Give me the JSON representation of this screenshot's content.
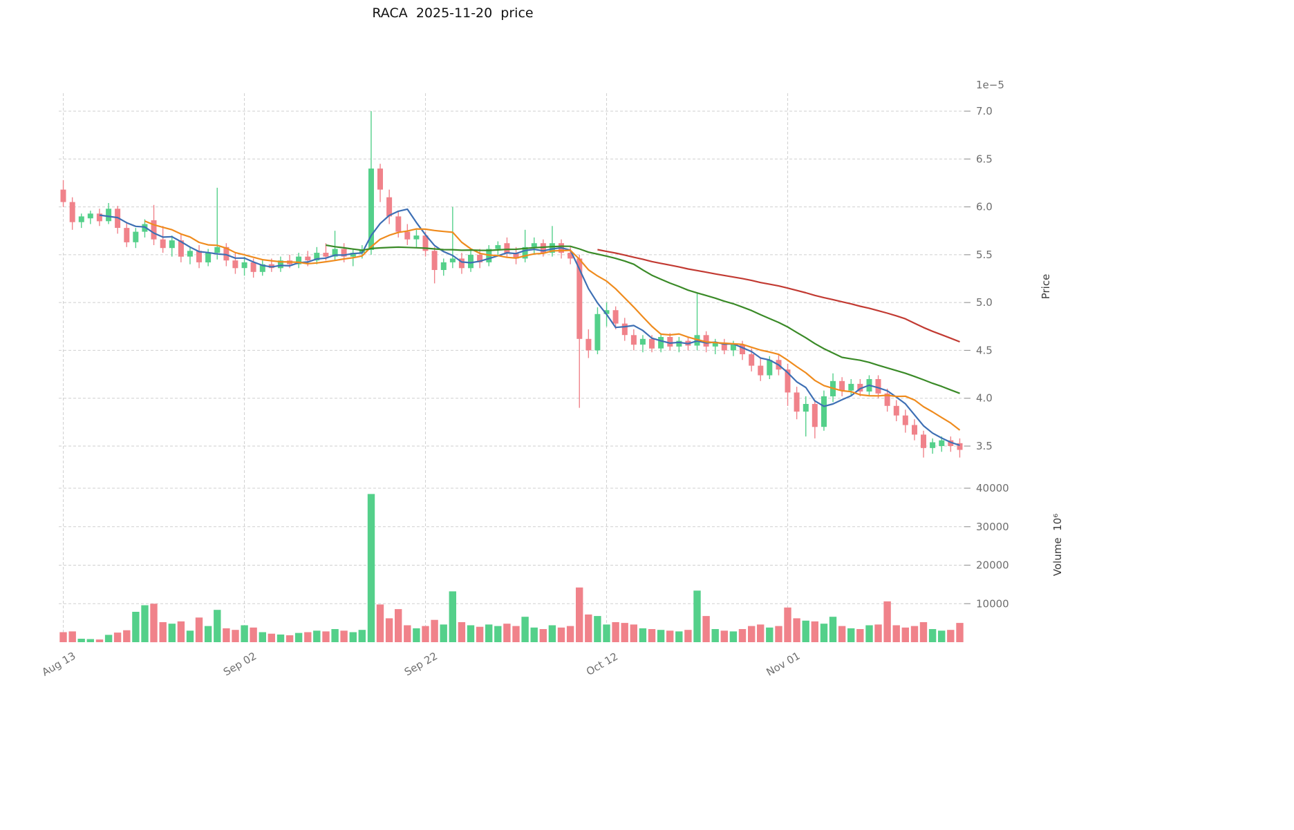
{
  "chart_data": {
    "type": "candlestick",
    "title": "RACA  2025-11-20  price",
    "legend_position": "none",
    "grid": true,
    "price_axis": {
      "label": "Price",
      "offset_text": "1e−5",
      "side": "right",
      "ticks": [
        7.0,
        6.5,
        6.0,
        5.5,
        5.0,
        4.5,
        4.0,
        3.5
      ],
      "tick_labels": [
        "7.0",
        "6.5",
        "6.0",
        "5.5",
        "5.0",
        "4.5",
        "4.0",
        "3.5"
      ],
      "range": [
        3.3,
        7.2
      ],
      "unit_multiplier": 1e-05
    },
    "volume_axis": {
      "label": "Volume  10⁶",
      "side": "right",
      "ticks": [
        10000,
        20000,
        30000,
        40000
      ],
      "tick_labels": [
        "10000",
        "20000",
        "30000",
        "40000"
      ],
      "range": [
        0,
        41500
      ]
    },
    "x_axis": {
      "tick_labels": [
        "Aug 13",
        "Sep 02",
        "Sep 22",
        "Oct 12",
        "Nov 01"
      ],
      "tick_indices": [
        0,
        20,
        40,
        60,
        80
      ],
      "rotation_deg": -30
    },
    "moving_averages": [
      {
        "name": "MA5",
        "window": 5,
        "color": "#3d6fb4"
      },
      {
        "name": "MA10",
        "window": 10,
        "color": "#ef8b1d"
      },
      {
        "name": "MA30",
        "window": 30,
        "color": "#3a8a27"
      },
      {
        "name": "MA60",
        "window": 60,
        "color": "#c23a32"
      }
    ],
    "colors": {
      "up": "#54d08a",
      "down": "#f0828a",
      "grid": "#cfcfcf",
      "tick_text": "#6e6e6e",
      "title_text": "#111111"
    },
    "candles": {
      "columns": [
        "date",
        "open",
        "high",
        "low",
        "close",
        "volume"
      ],
      "rows": [
        [
          "2025-08-13",
          6.18,
          6.28,
          6.0,
          6.05,
          2600
        ],
        [
          "2025-08-14",
          6.05,
          6.1,
          5.76,
          5.84,
          2800
        ],
        [
          "2025-08-15",
          5.84,
          5.93,
          5.78,
          5.9,
          900
        ],
        [
          "2025-08-16",
          5.88,
          5.96,
          5.82,
          5.93,
          800
        ],
        [
          "2025-08-17",
          5.93,
          5.98,
          5.8,
          5.85,
          700
        ],
        [
          "2025-08-18",
          5.85,
          6.04,
          5.82,
          5.98,
          1900
        ],
        [
          "2025-08-19",
          5.98,
          6.01,
          5.72,
          5.78,
          2500
        ],
        [
          "2025-08-20",
          5.78,
          5.84,
          5.58,
          5.63,
          3100
        ],
        [
          "2025-08-21",
          5.63,
          5.78,
          5.57,
          5.74,
          7900
        ],
        [
          "2025-08-22",
          5.74,
          5.87,
          5.68,
          5.82,
          9600
        ],
        [
          "2025-08-23",
          5.86,
          6.02,
          5.6,
          5.66,
          10000
        ],
        [
          "2025-08-24",
          5.66,
          5.8,
          5.52,
          5.57,
          5200
        ],
        [
          "2025-08-25",
          5.57,
          5.7,
          5.48,
          5.65,
          4800
        ],
        [
          "2025-08-26",
          5.65,
          5.72,
          5.42,
          5.48,
          5400
        ],
        [
          "2025-08-27",
          5.48,
          5.58,
          5.4,
          5.54,
          3000
        ],
        [
          "2025-08-28",
          5.54,
          5.6,
          5.36,
          5.42,
          6400
        ],
        [
          "2025-08-29",
          5.42,
          5.56,
          5.38,
          5.52,
          4200
        ],
        [
          "2025-08-30",
          5.52,
          6.2,
          5.45,
          5.58,
          8400
        ],
        [
          "2025-08-31",
          5.58,
          5.62,
          5.38,
          5.44,
          3600
        ],
        [
          "2025-09-01",
          5.44,
          5.52,
          5.3,
          5.36,
          3200
        ],
        [
          "2025-09-02",
          5.36,
          5.48,
          5.28,
          5.42,
          4400
        ],
        [
          "2025-09-03",
          5.42,
          5.46,
          5.26,
          5.32,
          3800
        ],
        [
          "2025-09-04",
          5.32,
          5.44,
          5.28,
          5.4,
          2600
        ],
        [
          "2025-09-05",
          5.4,
          5.46,
          5.32,
          5.36,
          2200
        ],
        [
          "2025-09-06",
          5.36,
          5.48,
          5.32,
          5.44,
          2000
        ],
        [
          "2025-09-07",
          5.44,
          5.5,
          5.36,
          5.4,
          1800
        ],
        [
          "2025-09-08",
          5.4,
          5.52,
          5.36,
          5.48,
          2400
        ],
        [
          "2025-09-09",
          5.48,
          5.54,
          5.38,
          5.44,
          2600
        ],
        [
          "2025-09-10",
          5.44,
          5.58,
          5.4,
          5.52,
          3000
        ],
        [
          "2025-09-11",
          5.52,
          5.62,
          5.44,
          5.48,
          2800
        ],
        [
          "2025-09-12",
          5.48,
          5.75,
          5.44,
          5.56,
          3400
        ],
        [
          "2025-09-13",
          5.56,
          5.62,
          5.42,
          5.48,
          3000
        ],
        [
          "2025-09-14",
          5.48,
          5.56,
          5.38,
          5.52,
          2600
        ],
        [
          "2025-09-15",
          5.52,
          5.6,
          5.46,
          5.55,
          3200
        ],
        [
          "2025-09-16",
          5.55,
          7.0,
          5.5,
          6.4,
          38500
        ],
        [
          "2025-09-17",
          6.4,
          6.45,
          6.05,
          6.18,
          9800
        ],
        [
          "2025-09-18",
          6.1,
          6.18,
          5.82,
          5.9,
          6200
        ],
        [
          "2025-09-19",
          5.9,
          5.96,
          5.68,
          5.74,
          8600
        ],
        [
          "2025-09-20",
          5.74,
          5.82,
          5.6,
          5.66,
          4400
        ],
        [
          "2025-09-21",
          5.66,
          5.76,
          5.58,
          5.7,
          3600
        ],
        [
          "2025-09-22",
          5.7,
          5.74,
          5.48,
          5.54,
          4200
        ],
        [
          "2025-09-23",
          5.54,
          5.58,
          5.2,
          5.34,
          5800
        ],
        [
          "2025-09-24",
          5.34,
          5.46,
          5.28,
          5.42,
          4600
        ],
        [
          "2025-09-25",
          5.42,
          6.0,
          5.36,
          5.46,
          13200
        ],
        [
          "2025-09-26",
          5.46,
          5.52,
          5.3,
          5.36,
          5200
        ],
        [
          "2025-09-27",
          5.36,
          5.54,
          5.32,
          5.5,
          4400
        ],
        [
          "2025-09-28",
          5.5,
          5.56,
          5.36,
          5.42,
          4000
        ],
        [
          "2025-09-29",
          5.42,
          5.6,
          5.38,
          5.56,
          4600
        ],
        [
          "2025-09-30",
          5.56,
          5.64,
          5.48,
          5.6,
          4200
        ],
        [
          "2025-10-01",
          5.62,
          5.68,
          5.48,
          5.52,
          4800
        ],
        [
          "2025-10-02",
          5.52,
          5.58,
          5.4,
          5.46,
          4200
        ],
        [
          "2025-10-03",
          5.46,
          5.76,
          5.42,
          5.58,
          6600
        ],
        [
          "2025-10-04",
          5.58,
          5.68,
          5.5,
          5.62,
          3800
        ],
        [
          "2025-10-05",
          5.62,
          5.66,
          5.48,
          5.52,
          3400
        ],
        [
          "2025-10-06",
          5.52,
          5.8,
          5.48,
          5.62,
          4400
        ],
        [
          "2025-10-07",
          5.62,
          5.66,
          5.46,
          5.52,
          3800
        ],
        [
          "2025-10-08",
          5.52,
          5.58,
          5.4,
          5.46,
          4200
        ],
        [
          "2025-10-09",
          5.46,
          5.5,
          3.9,
          4.62,
          14200
        ],
        [
          "2025-10-10",
          4.62,
          4.72,
          4.42,
          4.5,
          7200
        ],
        [
          "2025-10-11",
          4.5,
          4.95,
          4.46,
          4.88,
          6800
        ],
        [
          "2025-10-12",
          4.88,
          5.0,
          4.75,
          4.92,
          4600
        ],
        [
          "2025-10-13",
          4.92,
          4.96,
          4.72,
          4.78,
          5200
        ],
        [
          "2025-10-14",
          4.78,
          4.84,
          4.6,
          4.66,
          5000
        ],
        [
          "2025-10-15",
          4.66,
          4.72,
          4.5,
          4.56,
          4600
        ],
        [
          "2025-10-16",
          4.56,
          4.66,
          4.48,
          4.62,
          3600
        ],
        [
          "2025-10-17",
          4.62,
          4.66,
          4.48,
          4.52,
          3400
        ],
        [
          "2025-10-18",
          4.52,
          4.68,
          4.48,
          4.64,
          3200
        ],
        [
          "2025-10-19",
          4.64,
          4.68,
          4.5,
          4.54,
          3000
        ],
        [
          "2025-10-20",
          4.54,
          4.64,
          4.48,
          4.6,
          2800
        ],
        [
          "2025-10-21",
          4.6,
          4.64,
          4.5,
          4.55,
          3200
        ],
        [
          "2025-10-22",
          4.55,
          5.1,
          4.5,
          4.66,
          13400
        ],
        [
          "2025-10-23",
          4.66,
          4.7,
          4.48,
          4.54,
          6800
        ],
        [
          "2025-10-24",
          4.54,
          4.62,
          4.46,
          4.58,
          3400
        ],
        [
          "2025-10-25",
          4.58,
          4.62,
          4.46,
          4.5,
          3000
        ],
        [
          "2025-10-26",
          4.5,
          4.6,
          4.44,
          4.56,
          2800
        ],
        [
          "2025-10-27",
          4.56,
          4.6,
          4.4,
          4.46,
          3400
        ],
        [
          "2025-10-28",
          4.46,
          4.52,
          4.28,
          4.34,
          4200
        ],
        [
          "2025-10-29",
          4.34,
          4.42,
          4.18,
          4.24,
          4600
        ],
        [
          "2025-10-30",
          4.24,
          4.44,
          4.2,
          4.4,
          3800
        ],
        [
          "2025-10-31",
          4.4,
          4.46,
          4.24,
          4.3,
          4200
        ],
        [
          "2025-11-01",
          4.3,
          4.36,
          3.92,
          4.06,
          9000
        ],
        [
          "2025-11-02",
          4.06,
          4.12,
          3.78,
          3.86,
          6200
        ],
        [
          "2025-11-03",
          3.86,
          4.02,
          3.6,
          3.94,
          5600
        ],
        [
          "2025-11-04",
          3.94,
          3.98,
          3.58,
          3.7,
          5400
        ],
        [
          "2025-11-05",
          3.7,
          4.08,
          3.66,
          4.02,
          4800
        ],
        [
          "2025-11-06",
          4.02,
          4.26,
          3.96,
          4.18,
          6600
        ],
        [
          "2025-11-07",
          4.18,
          4.22,
          4.02,
          4.08,
          4200
        ],
        [
          "2025-11-08",
          4.08,
          4.2,
          4.02,
          4.15,
          3600
        ],
        [
          "2025-11-09",
          4.15,
          4.2,
          4.02,
          4.07,
          3400
        ],
        [
          "2025-11-10",
          4.07,
          4.24,
          4.02,
          4.2,
          4400
        ],
        [
          "2025-11-11",
          4.2,
          4.24,
          4.0,
          4.05,
          4600
        ],
        [
          "2025-11-12",
          4.05,
          4.1,
          3.86,
          3.92,
          10600
        ],
        [
          "2025-11-13",
          3.92,
          3.98,
          3.76,
          3.82,
          4400
        ],
        [
          "2025-11-14",
          3.82,
          3.88,
          3.64,
          3.72,
          3800
        ],
        [
          "2025-11-15",
          3.72,
          3.78,
          3.56,
          3.62,
          4200
        ],
        [
          "2025-11-16",
          3.62,
          3.66,
          3.38,
          3.48,
          5200
        ],
        [
          "2025-11-17",
          3.48,
          3.58,
          3.42,
          3.54,
          3400
        ],
        [
          "2025-11-18",
          3.5,
          3.6,
          3.44,
          3.56,
          3000
        ],
        [
          "2025-11-19",
          3.56,
          3.6,
          3.44,
          3.5,
          3200
        ],
        [
          "2025-11-20",
          3.53,
          3.58,
          3.38,
          3.46,
          5000
        ]
      ]
    }
  }
}
